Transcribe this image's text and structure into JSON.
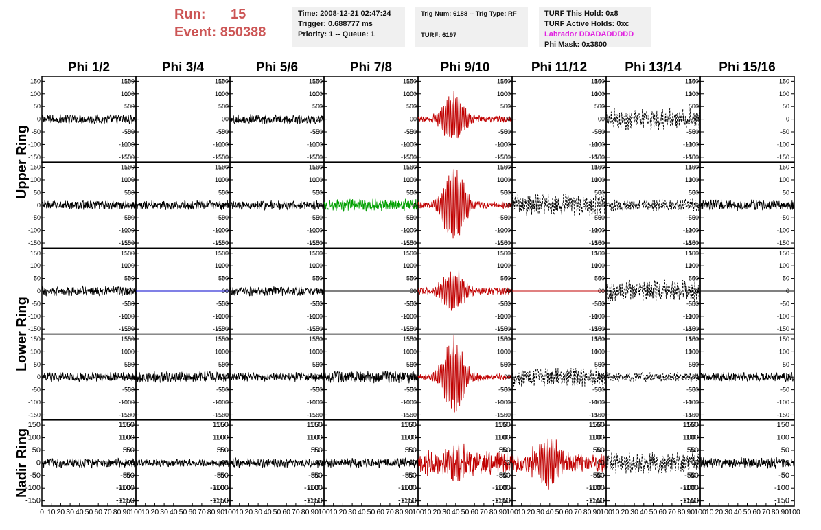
{
  "header": {
    "run_label": "Run:",
    "run_value": "15",
    "event_label": "Event:",
    "event_value": "850388"
  },
  "info1": {
    "time": "Time: 2008-12-21 02:47:24",
    "trigger": "Trigger: 0.688777 ms",
    "priority": "Priority: 1 -- Queue: 1"
  },
  "info2": {
    "trig": "Trig Num: 6188 -- Trig Type: RF",
    "turf": "TURF: 6197"
  },
  "info3": {
    "this_hold": "TURF This Hold: 0x8",
    "active_holds": "TURF Active Holds: 0xc",
    "labrador": "Labrador DDADADDDDD",
    "phi_mask": "Phi Mask: 0x3800"
  },
  "colors": {
    "accent_red": "#cc5555",
    "magenta": "#e020e0",
    "trace_black": "#000000",
    "trace_red": "#c00000",
    "trace_green": "#00a000",
    "trace_blue": "#0000cc"
  },
  "chart_data": {
    "type": "line",
    "columns": [
      "Phi 1/2",
      "Phi 3/4",
      "Phi 5/6",
      "Phi 7/8",
      "Phi 9/10",
      "Phi 11/12",
      "Phi 13/14",
      "Phi 15/16"
    ],
    "ring_labels": [
      "Upper Ring",
      "Lower Ring",
      "Nadir Ring"
    ],
    "ylim": [
      -170,
      170
    ],
    "xlim": [
      0,
      100
    ],
    "y_ticks": [
      150,
      100,
      50,
      0,
      -50,
      -100,
      -150
    ],
    "x_ticks": [
      0,
      10,
      20,
      30,
      40,
      50,
      60,
      70,
      80,
      90,
      100
    ],
    "panels": [
      [
        {
          "color": "black",
          "style": "solid",
          "amp": 15,
          "burst": 0
        },
        {
          "color": "black",
          "style": "solid",
          "amp": 0,
          "burst": 0
        },
        {
          "color": "black",
          "style": "solid",
          "amp": 15,
          "burst": 0
        },
        {
          "color": "black",
          "style": "solid",
          "amp": 0,
          "burst": 0
        },
        {
          "color": "red",
          "style": "solid",
          "amp": 10,
          "burst": 110
        },
        {
          "color": "red",
          "style": "solid",
          "amp": 0,
          "burst": 0
        },
        {
          "color": "black",
          "style": "dashed",
          "amp": 35,
          "burst": 0
        },
        {
          "color": "black",
          "style": "solid",
          "amp": 0,
          "burst": 0
        }
      ],
      [
        {
          "color": "black",
          "style": "solid",
          "amp": 15,
          "burst": 0
        },
        {
          "color": "black",
          "style": "solid",
          "amp": 15,
          "burst": 0
        },
        {
          "color": "black",
          "style": "solid",
          "amp": 15,
          "burst": 0
        },
        {
          "color": "green",
          "style": "solid",
          "amp": 20,
          "burst": 0
        },
        {
          "color": "red",
          "style": "solid",
          "amp": 12,
          "burst": 170
        },
        {
          "color": "black",
          "style": "dashed",
          "amp": 35,
          "burst": 0
        },
        {
          "color": "black",
          "style": "dashed",
          "amp": 20,
          "burst": 0
        },
        {
          "color": "black",
          "style": "solid",
          "amp": 18,
          "burst": 0
        }
      ],
      [
        {
          "color": "black",
          "style": "solid",
          "amp": 15,
          "burst": 0
        },
        {
          "color": "blue",
          "style": "solid",
          "amp": 0,
          "burst": 0
        },
        {
          "color": "black",
          "style": "solid",
          "amp": 15,
          "burst": 0
        },
        {
          "color": "black",
          "style": "solid",
          "amp": 0,
          "burst": 0
        },
        {
          "color": "red",
          "style": "solid",
          "amp": 12,
          "burst": 95
        },
        {
          "color": "red",
          "style": "solid",
          "amp": 0,
          "burst": 0
        },
        {
          "color": "black",
          "style": "dashed",
          "amp": 35,
          "burst": 0
        },
        {
          "color": "black",
          "style": "solid",
          "amp": 0,
          "burst": 0
        }
      ],
      [
        {
          "color": "black",
          "style": "solid",
          "amp": 15,
          "burst": 0
        },
        {
          "color": "black",
          "style": "solid",
          "amp": 18,
          "burst": 0
        },
        {
          "color": "black",
          "style": "solid",
          "amp": 15,
          "burst": 0
        },
        {
          "color": "black",
          "style": "solid",
          "amp": 20,
          "burst": 0
        },
        {
          "color": "red",
          "style": "solid",
          "amp": 12,
          "burst": 160
        },
        {
          "color": "black",
          "style": "dashed",
          "amp": 30,
          "burst": 0
        },
        {
          "color": "black",
          "style": "dashed",
          "amp": 15,
          "burst": 0
        },
        {
          "color": "black",
          "style": "solid",
          "amp": 15,
          "burst": 0
        }
      ],
      [
        {
          "color": "black",
          "style": "solid",
          "amp": 15,
          "burst": 0
        },
        {
          "color": "black",
          "style": "solid",
          "amp": 12,
          "burst": 0
        },
        {
          "color": "black",
          "style": "solid",
          "amp": 15,
          "burst": 0
        },
        {
          "color": "black",
          "style": "solid",
          "amp": 15,
          "burst": 0
        },
        {
          "color": "red",
          "style": "solid",
          "amp": 40,
          "burst": 60
        },
        {
          "color": "red",
          "style": "solid",
          "amp": 30,
          "burst": 110
        },
        {
          "color": "black",
          "style": "dashed",
          "amp": 35,
          "burst": 0
        },
        {
          "color": "black",
          "style": "solid",
          "amp": 18,
          "burst": 0
        }
      ]
    ]
  }
}
